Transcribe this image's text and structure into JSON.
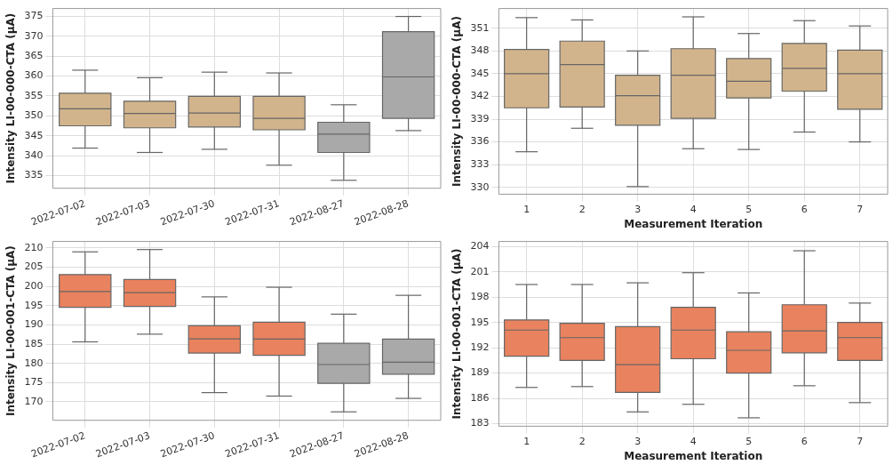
{
  "chart_data": [
    {
      "type": "box",
      "ylabel": "Intensity LI-00-000-CTA (µA)",
      "categories": [
        "2022-07-02",
        "2022-07-03",
        "2022-07-30",
        "2022-07-31",
        "2022-08-27",
        "2022-08-28"
      ],
      "boxes": [
        {
          "low": 341.9,
          "q1": 347.5,
          "median": 351.8,
          "q3": 355.7,
          "high": 361.5
        },
        {
          "low": 340.8,
          "q1": 347,
          "median": 350.6,
          "q3": 353.7,
          "high": 359.6
        },
        {
          "low": 341.6,
          "q1": 347.2,
          "median": 350.7,
          "q3": 354.9,
          "high": 361
        },
        {
          "low": 337.6,
          "q1": 346.5,
          "median": 349.4,
          "q3": 354.9,
          "high": 360.8
        },
        {
          "low": 333.8,
          "q1": 340.8,
          "median": 345.4,
          "q3": 348.4,
          "high": 352.8
        },
        {
          "low": 346.3,
          "q1": 349.4,
          "median": 359.8,
          "q3": 371.2,
          "high": 375
        }
      ],
      "colors": [
        "#d2b48c",
        "#d2b48c",
        "#d2b48c",
        "#d2b48c",
        "#a9a9a9",
        "#a9a9a9"
      ],
      "ylim": [
        331.8,
        377
      ],
      "yticks": [
        335,
        340,
        345,
        350,
        355,
        360,
        365,
        370,
        375
      ],
      "grid": true
    },
    {
      "type": "box",
      "ylabel": "Intensity LI-00-000-CTA (µA)",
      "xlabel": "Measurement Iteration",
      "categories": [
        "1",
        "2",
        "3",
        "4",
        "5",
        "6",
        "7"
      ],
      "boxes": [
        {
          "low": 334.7,
          "q1": 340.5,
          "median": 345,
          "q3": 348.2,
          "high": 352.4
        },
        {
          "low": 337.8,
          "q1": 340.6,
          "median": 346.2,
          "q3": 349.3,
          "high": 352.1
        },
        {
          "low": 330.1,
          "q1": 338.2,
          "median": 342.1,
          "q3": 344.8,
          "high": 348
        },
        {
          "low": 335.1,
          "q1": 339.1,
          "median": 344.8,
          "q3": 348.3,
          "high": 352.5
        },
        {
          "low": 335,
          "q1": 341.8,
          "median": 344,
          "q3": 347,
          "high": 350.3
        },
        {
          "low": 337.3,
          "q1": 342.7,
          "median": 345.7,
          "q3": 349,
          "high": 352
        },
        {
          "low": 336,
          "q1": 340.3,
          "median": 345,
          "q3": 348.1,
          "high": 351.3
        }
      ],
      "colors": [
        "#d2b48c",
        "#d2b48c",
        "#d2b48c",
        "#d2b48c",
        "#d2b48c",
        "#d2b48c",
        "#d2b48c"
      ],
      "ylim": [
        329.1,
        353.6
      ],
      "yticks": [
        330,
        333,
        336,
        339,
        342,
        345,
        348,
        351
      ],
      "grid": true
    },
    {
      "type": "box",
      "ylabel": "Intensity LI-00-001-CTA (µA)",
      "categories": [
        "2022-07-02",
        "2022-07-03",
        "2022-07-30",
        "2022-07-31",
        "2022-08-27",
        "2022-08-28"
      ],
      "boxes": [
        {
          "low": 185.6,
          "q1": 194.6,
          "median": 198.7,
          "q3": 203.1,
          "high": 209
        },
        {
          "low": 187.6,
          "q1": 194.8,
          "median": 198.4,
          "q3": 201.8,
          "high": 209.6
        },
        {
          "low": 172.4,
          "q1": 182.7,
          "median": 186.4,
          "q3": 189.8,
          "high": 197.3
        },
        {
          "low": 171.5,
          "q1": 182.1,
          "median": 186.3,
          "q3": 190.7,
          "high": 199.8
        },
        {
          "low": 167.4,
          "q1": 174.8,
          "median": 179.7,
          "q3": 185.2,
          "high": 192.8
        },
        {
          "low": 170.9,
          "q1": 177.2,
          "median": 180.3,
          "q3": 186.3,
          "high": 197.7
        }
      ],
      "colors": [
        "#e9825e",
        "#e9825e",
        "#e9825e",
        "#e9825e",
        "#a9a9a9",
        "#a9a9a9"
      ],
      "ylim": [
        165.2,
        211.7
      ],
      "yticks": [
        170,
        175,
        180,
        185,
        190,
        195,
        200,
        205,
        210
      ],
      "grid": true
    },
    {
      "type": "box",
      "ylabel": "Intensity LI-00-001-CTA (µA)",
      "xlabel": "Measurement Iteration",
      "categories": [
        "1",
        "2",
        "3",
        "4",
        "5",
        "6",
        "7"
      ],
      "boxes": [
        {
          "low": 187.3,
          "q1": 191,
          "median": 194.1,
          "q3": 195.3,
          "high": 199.5
        },
        {
          "low": 187.4,
          "q1": 190.5,
          "median": 193.2,
          "q3": 194.9,
          "high": 199.5
        },
        {
          "low": 184.4,
          "q1": 186.7,
          "median": 190,
          "q3": 194.5,
          "high": 199.7
        },
        {
          "low": 185.3,
          "q1": 190.7,
          "median": 194.1,
          "q3": 196.8,
          "high": 200.9
        },
        {
          "low": 183.7,
          "q1": 189,
          "median": 191.7,
          "q3": 193.9,
          "high": 198.5
        },
        {
          "low": 187.5,
          "q1": 191.4,
          "median": 194,
          "q3": 197.1,
          "high": 203.5
        },
        {
          "low": 185.5,
          "q1": 190.5,
          "median": 193.2,
          "q3": 195,
          "high": 197.3
        }
      ],
      "colors": [
        "#e9825e",
        "#e9825e",
        "#e9825e",
        "#e9825e",
        "#e9825e",
        "#e9825e",
        "#e9825e"
      ],
      "ylim": [
        182.7,
        204.6
      ],
      "yticks": [
        183,
        186,
        189,
        192,
        195,
        198,
        201,
        204
      ],
      "grid": true
    }
  ]
}
